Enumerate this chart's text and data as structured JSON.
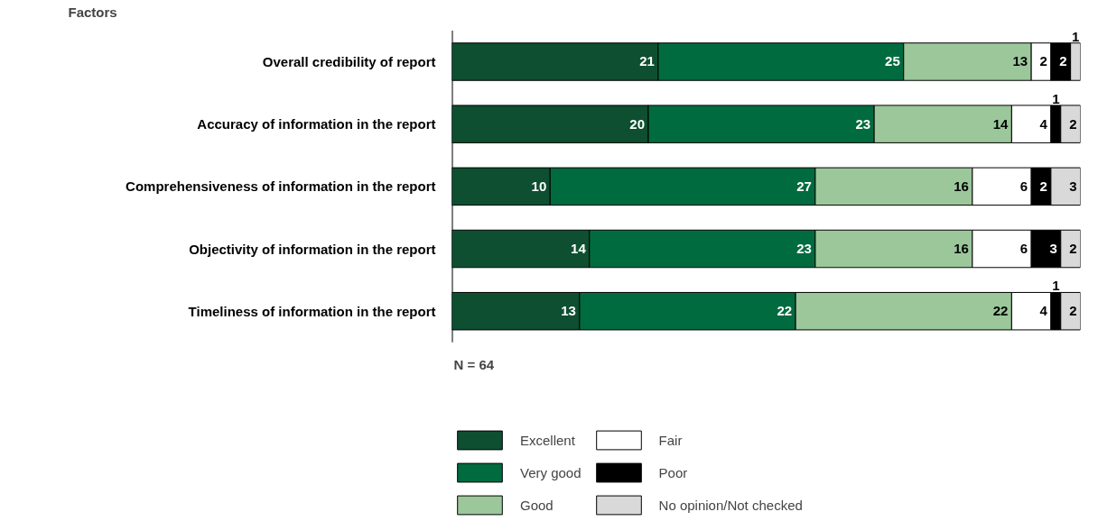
{
  "chart_data": {
    "type": "bar",
    "orientation": "horizontal",
    "stacked": true,
    "data_labels": true,
    "legend": "bottom",
    "grid": false,
    "ylabel": "Factors",
    "categories": [
      "Overall credibility of report",
      "Accuracy of information in the report",
      "Comprehensiveness of information in the report",
      "Objectivity of information in the report",
      "Timeliness of information in the report"
    ],
    "series": [
      {
        "name": "Excellent",
        "color": "#0d4f30",
        "values": [
          21,
          20,
          10,
          14,
          13
        ]
      },
      {
        "name": "Very good",
        "color": "#006b3f",
        "values": [
          25,
          23,
          27,
          23,
          22
        ]
      },
      {
        "name": "Good",
        "color": "#9bc79b",
        "values": [
          13,
          14,
          16,
          16,
          22
        ]
      },
      {
        "name": "Fair",
        "color": "#ffffff",
        "values": [
          2,
          4,
          6,
          6,
          4
        ]
      },
      {
        "name": "Poor",
        "color": "#000000",
        "values": [
          2,
          1,
          2,
          3,
          1
        ]
      },
      {
        "name": "No opinion/Not checked",
        "color": "#d9d9d9",
        "values": [
          1,
          2,
          3,
          2,
          2
        ]
      }
    ],
    "annotations": [
      "N = 64"
    ]
  }
}
